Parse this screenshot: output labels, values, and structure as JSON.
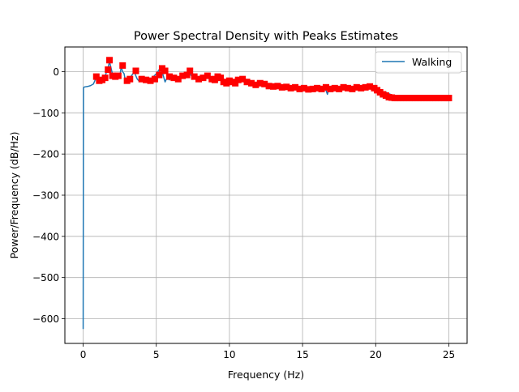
{
  "chart_data": {
    "type": "line",
    "title": "Power Spectral Density with Peaks Estimates",
    "xlabel": "Frequency (Hz)",
    "ylabel": "Power/Frequency (dB/Hz)",
    "xlim": [
      -1.25,
      26.25
    ],
    "ylim": [
      -660,
      60
    ],
    "x_ticks": [
      0,
      5,
      10,
      15,
      20,
      25
    ],
    "y_ticks": [
      0,
      -100,
      -200,
      -300,
      -400,
      -500,
      -600
    ],
    "grid": true,
    "legend_position": "top-right",
    "series": [
      {
        "name": "Walking",
        "kind": "line",
        "color": "#1f77b4",
        "x": [
          0.0,
          0.02,
          0.05,
          0.1,
          0.3,
          0.5,
          0.7,
          0.8,
          0.9,
          1.0,
          1.1,
          1.2,
          1.3,
          1.4,
          1.5,
          1.6,
          1.7,
          1.8,
          1.9,
          2.0,
          2.1,
          2.2,
          2.3,
          2.4,
          2.5,
          2.6,
          2.7,
          2.8,
          2.9,
          3.0,
          3.1,
          3.2,
          3.3,
          3.4,
          3.5,
          3.6,
          3.7,
          3.8,
          3.9,
          4.0,
          4.2,
          4.4,
          4.6,
          4.8,
          5.0,
          5.2,
          5.4,
          5.6,
          5.8,
          5.9,
          6.0,
          6.2,
          6.4,
          6.6,
          6.8,
          7.0,
          7.2,
          7.4,
          7.6,
          7.8,
          8.0,
          8.2,
          8.4,
          8.6,
          8.8,
          9.0,
          9.2,
          9.4,
          9.6,
          9.8,
          10.0,
          10.2,
          10.4,
          10.6,
          10.8,
          11.0,
          11.3,
          11.6,
          11.9,
          12.2,
          12.5,
          12.8,
          13.1,
          13.4,
          13.7,
          14.0,
          14.3,
          14.6,
          14.9,
          15.2,
          15.5,
          15.8,
          16.1,
          16.4,
          16.6,
          16.7,
          16.8,
          17.1,
          17.4,
          17.7,
          18.0,
          18.3,
          18.6,
          18.9,
          19.2,
          19.5,
          19.8,
          20.1,
          20.4,
          20.7,
          21.0,
          21.3,
          21.6,
          22.0,
          22.5,
          23.0,
          23.5,
          24.0,
          24.5,
          25.0
        ],
        "y": [
          -625,
          -40,
          -38,
          -37,
          -36,
          -34,
          -30,
          -22,
          -12,
          -20,
          -25,
          -22,
          -15,
          -10,
          -12,
          0,
          8,
          25,
          10,
          -5,
          -12,
          -15,
          -10,
          -12,
          -14,
          12,
          0,
          -5,
          -25,
          -18,
          -22,
          -15,
          -10,
          -5,
          0,
          -10,
          -18,
          -22,
          -20,
          -18,
          -22,
          -20,
          -18,
          -12,
          -5,
          5,
          0,
          -25,
          -10,
          -20,
          -12,
          -18,
          -20,
          -15,
          -10,
          -5,
          0,
          -10,
          -18,
          -15,
          -12,
          -18,
          -15,
          -12,
          -14,
          -15,
          -22,
          -18,
          -20,
          -22,
          -20,
          -22,
          -25,
          -22,
          -18,
          -25,
          -28,
          -30,
          -32,
          -28,
          -30,
          -33,
          -35,
          -36,
          -35,
          -38,
          -37,
          -40,
          -38,
          -42,
          -40,
          -45,
          -42,
          -40,
          -45,
          -55,
          -42,
          -40,
          -45,
          -42,
          -40,
          -45,
          -42,
          -40,
          -38,
          -40,
          -42,
          -45,
          -48,
          -50,
          -55,
          -60,
          -63,
          -63,
          -63,
          -63,
          -63,
          -63,
          -63,
          -63
        ]
      },
      {
        "name": "",
        "kind": "markers",
        "marker": "square",
        "color": "#ff0000",
        "x": [
          0.9,
          1.1,
          1.3,
          1.5,
          1.7,
          1.8,
          2.0,
          2.2,
          2.4,
          2.7,
          3.0,
          3.2,
          3.6,
          4.0,
          4.3,
          4.6,
          4.9,
          5.2,
          5.4,
          5.6,
          5.9,
          6.2,
          6.5,
          6.8,
          7.1,
          7.3,
          7.6,
          7.9,
          8.2,
          8.5,
          8.8,
          9.0,
          9.2,
          9.4,
          9.6,
          9.8,
          10.0,
          10.2,
          10.4,
          10.6,
          10.9,
          11.2,
          11.5,
          11.8,
          12.1,
          12.4,
          12.7,
          13.0,
          13.3,
          13.6,
          13.9,
          14.2,
          14.5,
          14.8,
          15.1,
          15.4,
          15.7,
          16.0,
          16.3,
          16.6,
          16.9,
          17.2,
          17.5,
          17.8,
          18.1,
          18.4,
          18.7,
          19.0,
          19.3,
          19.6,
          19.9,
          20.1,
          20.3,
          20.5,
          20.7,
          20.9,
          21.1,
          21.3,
          21.5,
          21.7,
          21.9,
          22.1,
          22.3,
          22.5,
          22.7,
          22.9,
          23.1,
          23.3,
          23.5,
          23.7,
          23.9,
          24.1,
          24.3,
          24.5,
          24.7,
          24.9,
          25.0
        ],
        "y": [
          -12,
          -22,
          -20,
          -15,
          5,
          28,
          -10,
          -12,
          -10,
          15,
          -22,
          -18,
          2,
          -18,
          -20,
          -22,
          -18,
          -8,
          8,
          2,
          -12,
          -15,
          -18,
          -10,
          -8,
          2,
          -12,
          -18,
          -15,
          -10,
          -18,
          -20,
          -12,
          -15,
          -25,
          -28,
          -22,
          -25,
          -28,
          -20,
          -18,
          -25,
          -28,
          -32,
          -28,
          -30,
          -35,
          -36,
          -35,
          -38,
          -37,
          -40,
          -38,
          -42,
          -40,
          -43,
          -42,
          -40,
          -42,
          -38,
          -42,
          -40,
          -42,
          -38,
          -40,
          -42,
          -38,
          -40,
          -38,
          -36,
          -40,
          -45,
          -50,
          -55,
          -58,
          -62,
          -63,
          -64,
          -64,
          -64,
          -64,
          -64,
          -64,
          -64,
          -64,
          -64,
          -64,
          -64,
          -64,
          -64,
          -64,
          -64,
          -64,
          -64,
          -64,
          -64,
          -64
        ]
      }
    ]
  }
}
